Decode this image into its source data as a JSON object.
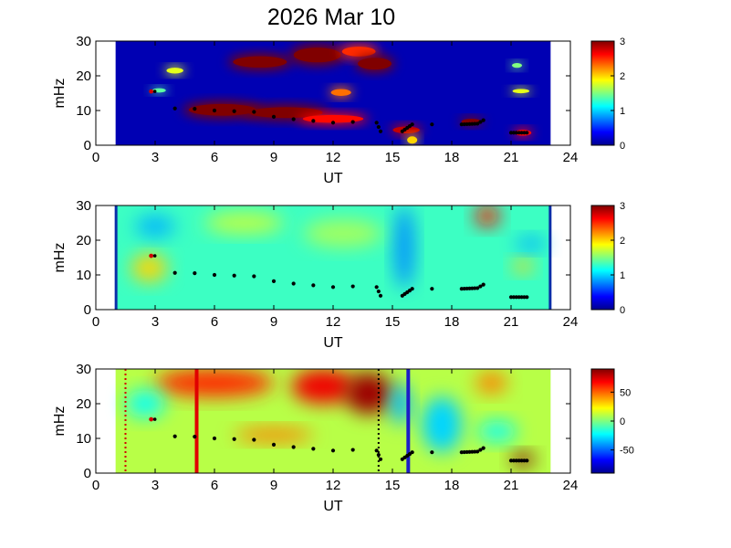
{
  "title": "2026 Mar 10",
  "colors": {
    "field_blue": "#0a2ea8",
    "peak_red": "#8b0000",
    "ridge": "#000000",
    "marker_red": "#d00000",
    "line_red": "#e00000",
    "line_blue": "#1c1cc8"
  },
  "chart_data": [
    {
      "type": "heatmap",
      "panel": "top",
      "xlabel": "UT",
      "ylabel": "mHz",
      "xlim": [
        0,
        24
      ],
      "ylim": [
        0,
        30
      ],
      "xticks": [
        0,
        3,
        6,
        9,
        12,
        15,
        18,
        21,
        24
      ],
      "yticks": [
        0,
        10,
        20,
        30
      ],
      "data_range_ut": [
        1,
        23
      ],
      "colorbar": {
        "range": [
          0,
          3
        ],
        "ticks": [
          0,
          1,
          2,
          3
        ]
      },
      "ridge": [
        {
          "x": 4.0,
          "y": 10.6
        },
        {
          "x": 5.0,
          "y": 10.5
        },
        {
          "x": 6.0,
          "y": 10.0
        },
        {
          "x": 7.0,
          "y": 9.8
        },
        {
          "x": 8.0,
          "y": 9.6
        },
        {
          "x": 9.0,
          "y": 8.2
        },
        {
          "x": 10.0,
          "y": 7.5
        },
        {
          "x": 11.0,
          "y": 7.0
        },
        {
          "x": 12.0,
          "y": 6.5
        },
        {
          "x": 13.0,
          "y": 6.7
        },
        {
          "x": 14.2,
          "y": 6.5
        },
        {
          "x": 14.4,
          "y": 4.0
        },
        {
          "x": 15.5,
          "y": 4.0
        },
        {
          "x": 16.0,
          "y": 6.0
        },
        {
          "x": 17.0,
          "y": 6.0
        },
        {
          "x": 18.5,
          "y": 6.0
        },
        {
          "x": 19.3,
          "y": 6.2
        },
        {
          "x": 19.6,
          "y": 7.2
        },
        {
          "x": 21.0,
          "y": 3.6
        },
        {
          "x": 21.8,
          "y": 3.6
        }
      ],
      "outlier": {
        "x": 2.8,
        "y": 15.5
      },
      "hotspots": [
        {
          "x": 6.4,
          "y": 10.2,
          "rx": 2.0,
          "ry": 2.4,
          "level": 3
        },
        {
          "x": 9.6,
          "y": 9.4,
          "rx": 2.2,
          "ry": 2.2,
          "level": 3
        },
        {
          "x": 12.0,
          "y": 7.6,
          "rx": 1.8,
          "ry": 1.6,
          "level": 2.6
        },
        {
          "x": 15.7,
          "y": 4.4,
          "rx": 0.8,
          "ry": 1.4,
          "level": 2.8
        },
        {
          "x": 8.3,
          "y": 24.0,
          "rx": 1.6,
          "ry": 2.3,
          "level": 3
        },
        {
          "x": 11.2,
          "y": 26.0,
          "rx": 1.4,
          "ry": 3.0,
          "level": 3
        },
        {
          "x": 13.3,
          "y": 27.0,
          "rx": 1.0,
          "ry": 2.0,
          "level": 2.5
        },
        {
          "x": 14.1,
          "y": 23.5,
          "rx": 1.0,
          "ry": 2.4,
          "level": 3
        },
        {
          "x": 12.4,
          "y": 15.2,
          "rx": 0.6,
          "ry": 1.4,
          "level": 2.3
        },
        {
          "x": 19.0,
          "y": 6.8,
          "rx": 0.6,
          "ry": 1.2,
          "level": 3
        },
        {
          "x": 21.6,
          "y": 3.6,
          "rx": 0.5,
          "ry": 1.2,
          "level": 2.6
        },
        {
          "x": 4.0,
          "y": 21.5,
          "rx": 0.5,
          "ry": 1.2,
          "level": 1.8
        },
        {
          "x": 3.2,
          "y": 15.8,
          "rx": 0.4,
          "ry": 0.9,
          "level": 1.4
        },
        {
          "x": 21.5,
          "y": 15.6,
          "rx": 0.5,
          "ry": 0.9,
          "level": 1.8
        },
        {
          "x": 21.3,
          "y": 23.0,
          "rx": 0.3,
          "ry": 1.0,
          "level": 1.5
        },
        {
          "x": 16.0,
          "y": 1.5,
          "rx": 0.3,
          "ry": 1.5,
          "level": 2.0
        }
      ]
    },
    {
      "type": "heatmap",
      "panel": "middle",
      "xlabel": "UT",
      "ylabel": "mHz",
      "xlim": [
        0,
        24
      ],
      "ylim": [
        0,
        30
      ],
      "xticks": [
        0,
        3,
        6,
        9,
        12,
        15,
        18,
        21,
        24
      ],
      "yticks": [
        0,
        10,
        20,
        30
      ],
      "data_range_ut": [
        1,
        23
      ],
      "colorbar": {
        "range": [
          0,
          3
        ],
        "ticks": [
          0,
          1,
          2,
          3
        ]
      },
      "background_level": 1.3,
      "hotspots": [
        {
          "x": 19.8,
          "y": 27.0,
          "rx": 0.6,
          "ry": 3.0,
          "level": 2.6
        },
        {
          "x": 15.6,
          "y": 18.0,
          "rx": 0.5,
          "ry": 12.0,
          "level": 0.8
        },
        {
          "x": 2.7,
          "y": 12.0,
          "rx": 0.9,
          "ry": 4.0,
          "level": 2.0
        },
        {
          "x": 21.6,
          "y": 12.5,
          "rx": 0.5,
          "ry": 2.0,
          "level": 2.0
        },
        {
          "x": 3.0,
          "y": 24.0,
          "rx": 1.0,
          "ry": 3.0,
          "level": 0.9
        },
        {
          "x": 22.0,
          "y": 19.0,
          "rx": 0.8,
          "ry": 2.0,
          "level": 0.9
        },
        {
          "x": 7.5,
          "y": 25.0,
          "rx": 2.0,
          "ry": 3.0,
          "level": 1.7
        },
        {
          "x": 12.5,
          "y": 22.0,
          "rx": 2.0,
          "ry": 4.0,
          "level": 1.6
        }
      ]
    },
    {
      "type": "heatmap",
      "panel": "bottom",
      "xlabel": "UT",
      "ylabel": "mHz",
      "xlim": [
        0,
        24
      ],
      "ylim": [
        0,
        30
      ],
      "xticks": [
        0,
        3,
        6,
        9,
        12,
        15,
        18,
        21,
        24
      ],
      "yticks": [
        0,
        10,
        20,
        30
      ],
      "data_range_ut": [
        1,
        23
      ],
      "colorbar": {
        "range": [
          -90,
          90
        ],
        "ticks": [
          50,
          0,
          -50
        ]
      },
      "background_level": 10,
      "vertical_markers": [
        {
          "x": 1.5,
          "style": "dotted",
          "color": "marker_red"
        },
        {
          "x": 5.1,
          "style": "solid",
          "color": "line_red"
        },
        {
          "x": 14.3,
          "style": "dotted",
          "color": "ridge"
        },
        {
          "x": 15.8,
          "style": "solid",
          "color": "line_blue"
        }
      ],
      "hotspots": [
        {
          "x": 6.0,
          "y": 26.0,
          "rx": 3.0,
          "ry": 4.0,
          "level": 60
        },
        {
          "x": 11.5,
          "y": 25.0,
          "rx": 1.6,
          "ry": 5.0,
          "level": 70
        },
        {
          "x": 13.8,
          "y": 23.0,
          "rx": 1.2,
          "ry": 6.0,
          "level": 85
        },
        {
          "x": 9.0,
          "y": 11.0,
          "rx": 2.0,
          "ry": 2.0,
          "level": 45
        },
        {
          "x": 21.6,
          "y": 4.0,
          "rx": 0.6,
          "ry": 2.0,
          "level": 90
        },
        {
          "x": 17.5,
          "y": 14.0,
          "rx": 1.0,
          "ry": 8.0,
          "level": -30
        },
        {
          "x": 2.5,
          "y": 20.0,
          "rx": 1.0,
          "ry": 4.0,
          "level": -20
        },
        {
          "x": 15.4,
          "y": 20.0,
          "rx": 0.5,
          "ry": 6.0,
          "level": -35
        },
        {
          "x": 20.0,
          "y": 26.0,
          "rx": 0.8,
          "ry": 3.0,
          "level": 45
        },
        {
          "x": 20.3,
          "y": 12.0,
          "rx": 1.0,
          "ry": 3.0,
          "level": -20
        }
      ]
    }
  ]
}
